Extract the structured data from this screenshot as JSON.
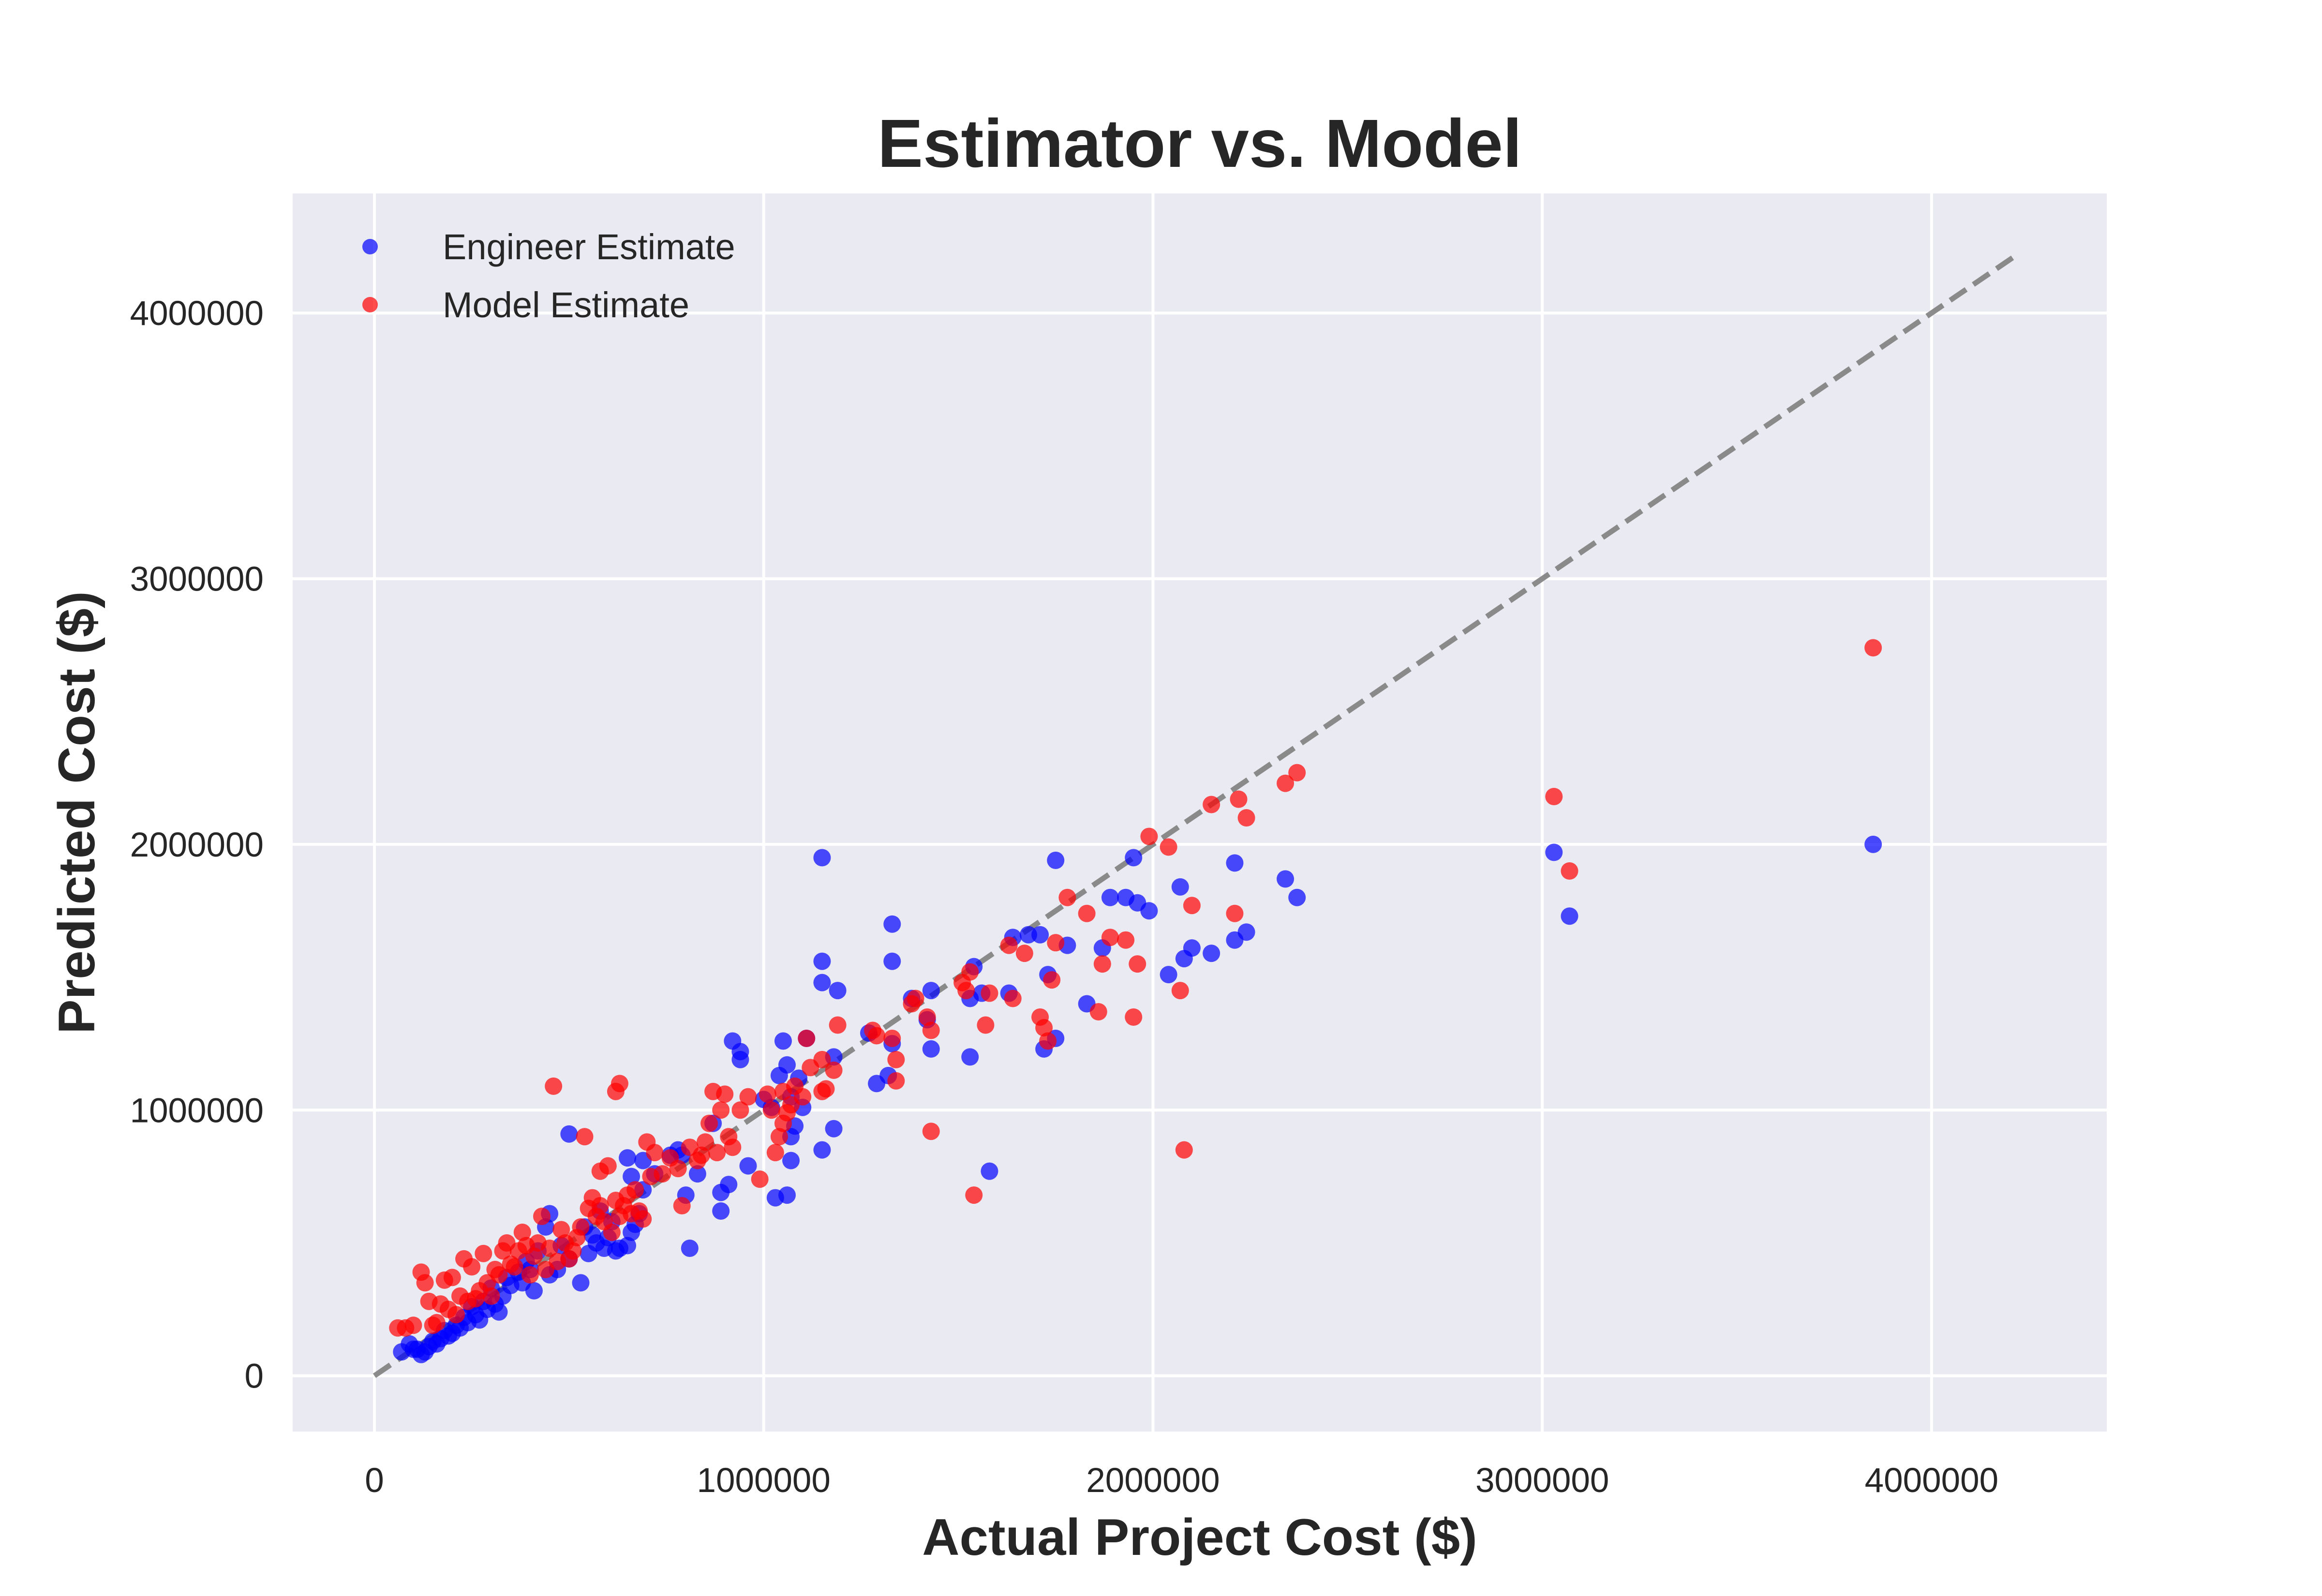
{
  "chart_data": {
    "type": "scatter",
    "title": "Estimator vs. Model",
    "xlabel": "Actual Project Cost ($)",
    "ylabel": "Predicted Cost ($)",
    "xlim": [
      -210000,
      4450000
    ],
    "ylim": [
      -210000,
      4450000
    ],
    "xticks": [
      0,
      1000000,
      2000000,
      3000000,
      4000000
    ],
    "yticks": [
      0,
      1000000,
      2000000,
      3000000,
      4000000
    ],
    "xtick_labels": [
      "0",
      "1000000",
      "2000000",
      "3000000",
      "4000000"
    ],
    "ytick_labels": [
      "0",
      "1000000",
      "2000000",
      "3000000",
      "4000000"
    ],
    "grid": true,
    "background": "#EAEAF2",
    "legend_position": "top-left",
    "reference_line": {
      "from": [
        0,
        0
      ],
      "to": [
        4220000,
        4220000
      ],
      "style": "dashed",
      "color": "#808080"
    },
    "series": [
      {
        "name": "Engineer Estimate",
        "color": "#0000FF",
        "points": [
          [
            3850000,
            2000000
          ],
          [
            3070000,
            1730000
          ],
          [
            3030000,
            1970000
          ],
          [
            2370000,
            1800000
          ],
          [
            2340000,
            1870000
          ],
          [
            2240000,
            1670000
          ],
          [
            2210000,
            1930000
          ],
          [
            2210000,
            1640000
          ],
          [
            2150000,
            1590000
          ],
          [
            2100000,
            1610000
          ],
          [
            2080000,
            1570000
          ],
          [
            2070000,
            1840000
          ],
          [
            2040000,
            1510000
          ],
          [
            1990000,
            1750000
          ],
          [
            1960000,
            1780000
          ],
          [
            1950000,
            1950000
          ],
          [
            1930000,
            1800000
          ],
          [
            1890000,
            1800000
          ],
          [
            1870000,
            1610000
          ],
          [
            1830000,
            1400000
          ],
          [
            1780000,
            1620000
          ],
          [
            1750000,
            1940000
          ],
          [
            1750000,
            1270000
          ],
          [
            1730000,
            1510000
          ],
          [
            1720000,
            1230000
          ],
          [
            1710000,
            1660000
          ],
          [
            1680000,
            1660000
          ],
          [
            1640000,
            1650000
          ],
          [
            1630000,
            1440000
          ],
          [
            1580000,
            770000
          ],
          [
            1560000,
            1440000
          ],
          [
            1540000,
            1540000
          ],
          [
            1530000,
            1420000
          ],
          [
            1530000,
            1200000
          ],
          [
            1430000,
            1450000
          ],
          [
            1430000,
            1230000
          ],
          [
            1420000,
            1340000
          ],
          [
            1380000,
            1420000
          ],
          [
            1330000,
            1700000
          ],
          [
            1330000,
            1560000
          ],
          [
            1330000,
            1250000
          ],
          [
            1320000,
            1130000
          ],
          [
            1290000,
            1100000
          ],
          [
            1270000,
            1290000
          ],
          [
            1190000,
            1450000
          ],
          [
            1180000,
            1200000
          ],
          [
            1180000,
            930000
          ],
          [
            1150000,
            1950000
          ],
          [
            1150000,
            1560000
          ],
          [
            1150000,
            1480000
          ],
          [
            1150000,
            850000
          ],
          [
            1110000,
            1270000
          ],
          [
            1100000,
            1010000
          ],
          [
            1090000,
            1120000
          ],
          [
            1080000,
            940000
          ],
          [
            1070000,
            1050000
          ],
          [
            1070000,
            900000
          ],
          [
            1070000,
            810000
          ],
          [
            1060000,
            1170000
          ],
          [
            1060000,
            680000
          ],
          [
            1050000,
            1260000
          ],
          [
            1040000,
            1130000
          ],
          [
            1030000,
            670000
          ],
          [
            1020000,
            1010000
          ],
          [
            1000000,
            1040000
          ],
          [
            960000,
            790000
          ],
          [
            940000,
            1220000
          ],
          [
            940000,
            1190000
          ],
          [
            920000,
            1260000
          ],
          [
            910000,
            720000
          ],
          [
            890000,
            690000
          ],
          [
            890000,
            620000
          ],
          [
            870000,
            950000
          ],
          [
            830000,
            760000
          ],
          [
            810000,
            480000
          ],
          [
            800000,
            680000
          ],
          [
            790000,
            830000
          ],
          [
            780000,
            850000
          ],
          [
            760000,
            830000
          ],
          [
            720000,
            760000
          ],
          [
            690000,
            810000
          ],
          [
            690000,
            700000
          ],
          [
            680000,
            610000
          ],
          [
            670000,
            570000
          ],
          [
            660000,
            750000
          ],
          [
            660000,
            540000
          ],
          [
            650000,
            820000
          ],
          [
            650000,
            490000
          ],
          [
            630000,
            480000
          ],
          [
            620000,
            470000
          ],
          [
            610000,
            580000
          ],
          [
            600000,
            520000
          ],
          [
            590000,
            480000
          ],
          [
            580000,
            620000
          ],
          [
            570000,
            500000
          ],
          [
            560000,
            530000
          ],
          [
            550000,
            460000
          ],
          [
            540000,
            560000
          ],
          [
            530000,
            350000
          ],
          [
            500000,
            910000
          ],
          [
            500000,
            440000
          ],
          [
            480000,
            490000
          ],
          [
            470000,
            400000
          ],
          [
            450000,
            610000
          ],
          [
            450000,
            380000
          ],
          [
            440000,
            560000
          ],
          [
            420000,
            470000
          ],
          [
            410000,
            320000
          ],
          [
            400000,
            400000
          ],
          [
            390000,
            430000
          ],
          [
            380000,
            350000
          ],
          [
            370000,
            390000
          ],
          [
            350000,
            340000
          ],
          [
            340000,
            370000
          ],
          [
            330000,
            300000
          ],
          [
            320000,
            240000
          ],
          [
            310000,
            270000
          ],
          [
            300000,
            330000
          ],
          [
            290000,
            250000
          ],
          [
            280000,
            280000
          ],
          [
            270000,
            210000
          ],
          [
            260000,
            230000
          ],
          [
            250000,
            260000
          ],
          [
            240000,
            200000
          ],
          [
            230000,
            220000
          ],
          [
            220000,
            180000
          ],
          [
            210000,
            190000
          ],
          [
            200000,
            160000
          ],
          [
            190000,
            150000
          ],
          [
            180000,
            170000
          ],
          [
            170000,
            140000
          ],
          [
            160000,
            120000
          ],
          [
            150000,
            130000
          ],
          [
            140000,
            110000
          ],
          [
            130000,
            90000
          ],
          [
            120000,
            80000
          ],
          [
            110000,
            100000
          ],
          [
            100000,
            100000
          ],
          [
            90000,
            120000
          ],
          [
            70000,
            90000
          ]
        ]
      },
      {
        "name": "Model Estimate",
        "color": "#FF0000",
        "points": [
          [
            3850000,
            2740000
          ],
          [
            3070000,
            1900000
          ],
          [
            3030000,
            2180000
          ],
          [
            2370000,
            2270000
          ],
          [
            2340000,
            2230000
          ],
          [
            2240000,
            2100000
          ],
          [
            2220000,
            2170000
          ],
          [
            2210000,
            1740000
          ],
          [
            2150000,
            2150000
          ],
          [
            2100000,
            1770000
          ],
          [
            2080000,
            850000
          ],
          [
            2070000,
            1450000
          ],
          [
            2040000,
            1990000
          ],
          [
            1990000,
            2030000
          ],
          [
            1960000,
            1550000
          ],
          [
            1950000,
            1350000
          ],
          [
            1930000,
            1640000
          ],
          [
            1890000,
            1650000
          ],
          [
            1870000,
            1550000
          ],
          [
            1860000,
            1370000
          ],
          [
            1830000,
            1740000
          ],
          [
            1780000,
            1800000
          ],
          [
            1750000,
            1630000
          ],
          [
            1740000,
            1490000
          ],
          [
            1730000,
            1260000
          ],
          [
            1720000,
            1310000
          ],
          [
            1710000,
            1350000
          ],
          [
            1670000,
            1590000
          ],
          [
            1640000,
            1420000
          ],
          [
            1630000,
            1620000
          ],
          [
            1580000,
            1440000
          ],
          [
            1570000,
            1320000
          ],
          [
            1540000,
            680000
          ],
          [
            1530000,
            1520000
          ],
          [
            1520000,
            1450000
          ],
          [
            1510000,
            1480000
          ],
          [
            1430000,
            1300000
          ],
          [
            1430000,
            920000
          ],
          [
            1420000,
            1350000
          ],
          [
            1390000,
            1420000
          ],
          [
            1380000,
            1400000
          ],
          [
            1340000,
            1190000
          ],
          [
            1340000,
            1110000
          ],
          [
            1330000,
            1270000
          ],
          [
            1290000,
            1280000
          ],
          [
            1280000,
            1300000
          ],
          [
            1190000,
            1320000
          ],
          [
            1180000,
            1150000
          ],
          [
            1160000,
            1080000
          ],
          [
            1150000,
            1190000
          ],
          [
            1150000,
            1070000
          ],
          [
            1120000,
            1160000
          ],
          [
            1110000,
            1270000
          ],
          [
            1100000,
            1050000
          ],
          [
            1080000,
            1090000
          ],
          [
            1070000,
            1020000
          ],
          [
            1060000,
            990000
          ],
          [
            1050000,
            1070000
          ],
          [
            1050000,
            950000
          ],
          [
            1040000,
            900000
          ],
          [
            1030000,
            840000
          ],
          [
            1020000,
            1000000
          ],
          [
            1010000,
            1060000
          ],
          [
            990000,
            740000
          ],
          [
            960000,
            1050000
          ],
          [
            940000,
            1000000
          ],
          [
            920000,
            860000
          ],
          [
            910000,
            900000
          ],
          [
            900000,
            1060000
          ],
          [
            890000,
            1000000
          ],
          [
            880000,
            840000
          ],
          [
            870000,
            1070000
          ],
          [
            860000,
            950000
          ],
          [
            850000,
            880000
          ],
          [
            840000,
            830000
          ],
          [
            830000,
            810000
          ],
          [
            810000,
            860000
          ],
          [
            790000,
            640000
          ],
          [
            780000,
            780000
          ],
          [
            760000,
            820000
          ],
          [
            740000,
            760000
          ],
          [
            720000,
            840000
          ],
          [
            710000,
            750000
          ],
          [
            700000,
            880000
          ],
          [
            690000,
            590000
          ],
          [
            680000,
            620000
          ],
          [
            670000,
            700000
          ],
          [
            660000,
            610000
          ],
          [
            650000,
            680000
          ],
          [
            640000,
            640000
          ],
          [
            630000,
            1100000
          ],
          [
            630000,
            600000
          ],
          [
            620000,
            1070000
          ],
          [
            620000,
            660000
          ],
          [
            610000,
            540000
          ],
          [
            600000,
            790000
          ],
          [
            590000,
            580000
          ],
          [
            580000,
            770000
          ],
          [
            580000,
            640000
          ],
          [
            570000,
            600000
          ],
          [
            560000,
            670000
          ],
          [
            550000,
            630000
          ],
          [
            540000,
            900000
          ],
          [
            530000,
            560000
          ],
          [
            520000,
            520000
          ],
          [
            510000,
            470000
          ],
          [
            500000,
            440000
          ],
          [
            490000,
            500000
          ],
          [
            480000,
            550000
          ],
          [
            470000,
            430000
          ],
          [
            460000,
            1090000
          ],
          [
            450000,
            480000
          ],
          [
            440000,
            400000
          ],
          [
            430000,
            600000
          ],
          [
            420000,
            500000
          ],
          [
            410000,
            450000
          ],
          [
            400000,
            380000
          ],
          [
            390000,
            490000
          ],
          [
            380000,
            540000
          ],
          [
            370000,
            470000
          ],
          [
            360000,
            410000
          ],
          [
            350000,
            420000
          ],
          [
            340000,
            500000
          ],
          [
            330000,
            470000
          ],
          [
            320000,
            380000
          ],
          [
            310000,
            400000
          ],
          [
            300000,
            300000
          ],
          [
            290000,
            350000
          ],
          [
            280000,
            460000
          ],
          [
            270000,
            320000
          ],
          [
            260000,
            290000
          ],
          [
            250000,
            410000
          ],
          [
            240000,
            280000
          ],
          [
            230000,
            440000
          ],
          [
            220000,
            300000
          ],
          [
            210000,
            230000
          ],
          [
            200000,
            370000
          ],
          [
            190000,
            250000
          ],
          [
            180000,
            360000
          ],
          [
            170000,
            270000
          ],
          [
            160000,
            200000
          ],
          [
            150000,
            190000
          ],
          [
            140000,
            280000
          ],
          [
            130000,
            350000
          ],
          [
            120000,
            390000
          ],
          [
            100000,
            190000
          ],
          [
            80000,
            180000
          ],
          [
            60000,
            180000
          ]
        ]
      }
    ]
  }
}
